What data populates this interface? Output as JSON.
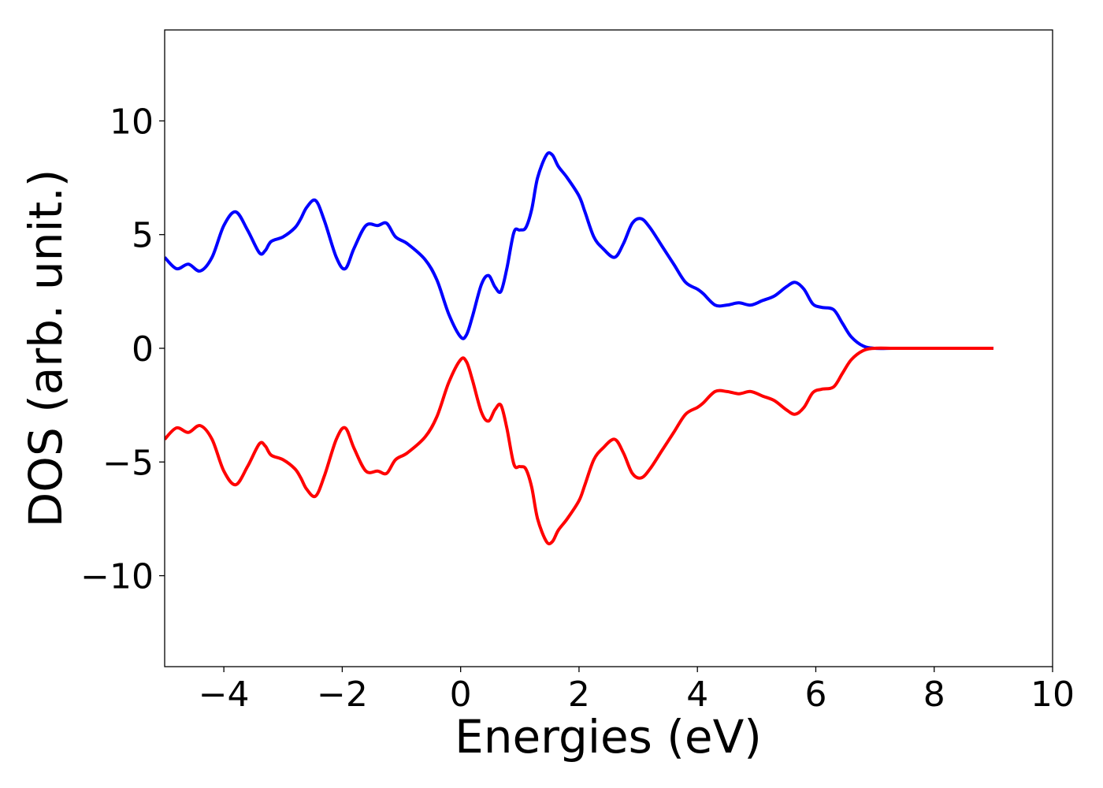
{
  "chart_data": {
    "type": "line",
    "title": "",
    "xlabel": "Energies (eV)",
    "ylabel": "DOS (arb. unit.)",
    "xlim": [
      -5,
      10
    ],
    "ylim": [
      -14,
      14
    ],
    "xticks": [
      -4,
      -2,
      0,
      2,
      4,
      6,
      8,
      10
    ],
    "yticks": [
      -10,
      -5,
      0,
      5,
      10
    ],
    "grid": false,
    "legend": "none",
    "series": [
      {
        "color": "#0000ff",
        "x": [
          -5.0,
          -4.8,
          -4.6,
          -4.4,
          -4.2,
          -4.0,
          -3.8,
          -3.6,
          -3.4,
          -3.3,
          -3.2,
          -3.0,
          -2.8,
          -2.7,
          -2.6,
          -2.45,
          -2.3,
          -2.1,
          -1.95,
          -1.8,
          -1.6,
          -1.4,
          -1.25,
          -1.1,
          -0.9,
          -0.6,
          -0.4,
          -0.2,
          0.0,
          0.1,
          0.2,
          0.35,
          0.47,
          0.58,
          0.68,
          0.78,
          0.9,
          1.0,
          1.1,
          1.2,
          1.3,
          1.45,
          1.55,
          1.65,
          1.8,
          2.0,
          2.1,
          2.25,
          2.4,
          2.6,
          2.75,
          2.9,
          3.05,
          3.2,
          3.4,
          3.6,
          3.8,
          4.0,
          4.1,
          4.3,
          4.5,
          4.7,
          4.9,
          5.1,
          5.3,
          5.5,
          5.65,
          5.8,
          5.95,
          6.1,
          6.3,
          6.45,
          6.6,
          6.8,
          7.0,
          7.3,
          7.6,
          8.0,
          8.5,
          9.0
        ],
        "values": [
          4.0,
          3.5,
          3.7,
          3.4,
          4.0,
          5.4,
          6.0,
          5.2,
          4.2,
          4.3,
          4.7,
          4.9,
          5.3,
          5.7,
          6.2,
          6.5,
          5.6,
          4.0,
          3.5,
          4.4,
          5.4,
          5.4,
          5.5,
          4.9,
          4.6,
          3.9,
          3.0,
          1.5,
          0.5,
          0.6,
          1.4,
          2.8,
          3.2,
          2.7,
          2.5,
          3.5,
          5.1,
          5.2,
          5.3,
          6.1,
          7.5,
          8.5,
          8.5,
          8.0,
          7.5,
          6.7,
          6.0,
          4.9,
          4.4,
          4.0,
          4.6,
          5.5,
          5.7,
          5.3,
          4.5,
          3.7,
          2.9,
          2.6,
          2.4,
          1.9,
          1.9,
          2.0,
          1.9,
          2.1,
          2.3,
          2.7,
          2.9,
          2.6,
          1.95,
          1.8,
          1.7,
          1.1,
          0.5,
          0.1,
          0.0,
          0.0,
          0.0,
          0.0,
          0.0,
          0.0
        ]
      },
      {
        "color": "#ff0000",
        "x": [
          -5.0,
          -4.8,
          -4.6,
          -4.4,
          -4.2,
          -4.0,
          -3.8,
          -3.6,
          -3.4,
          -3.3,
          -3.2,
          -3.0,
          -2.8,
          -2.7,
          -2.6,
          -2.45,
          -2.3,
          -2.1,
          -1.95,
          -1.8,
          -1.6,
          -1.4,
          -1.25,
          -1.1,
          -0.9,
          -0.6,
          -0.4,
          -0.2,
          0.0,
          0.1,
          0.2,
          0.35,
          0.47,
          0.58,
          0.68,
          0.78,
          0.9,
          1.0,
          1.1,
          1.2,
          1.3,
          1.45,
          1.55,
          1.65,
          1.8,
          2.0,
          2.1,
          2.25,
          2.4,
          2.6,
          2.75,
          2.9,
          3.05,
          3.2,
          3.4,
          3.6,
          3.8,
          4.0,
          4.1,
          4.3,
          4.5,
          4.7,
          4.9,
          5.1,
          5.3,
          5.5,
          5.65,
          5.8,
          5.95,
          6.1,
          6.3,
          6.45,
          6.6,
          6.8,
          7.0,
          7.3,
          7.6,
          8.0,
          8.5,
          9.0
        ],
        "values": [
          -4.0,
          -3.5,
          -3.7,
          -3.4,
          -4.0,
          -5.4,
          -6.0,
          -5.2,
          -4.2,
          -4.3,
          -4.7,
          -4.9,
          -5.3,
          -5.7,
          -6.2,
          -6.5,
          -5.6,
          -4.0,
          -3.5,
          -4.4,
          -5.4,
          -5.4,
          -5.5,
          -4.9,
          -4.6,
          -3.9,
          -3.0,
          -1.5,
          -0.5,
          -0.6,
          -1.4,
          -2.8,
          -3.2,
          -2.7,
          -2.5,
          -3.5,
          -5.1,
          -5.2,
          -5.3,
          -6.1,
          -7.5,
          -8.5,
          -8.5,
          -8.0,
          -7.5,
          -6.7,
          -6.0,
          -4.9,
          -4.4,
          -4.0,
          -4.6,
          -5.5,
          -5.7,
          -5.3,
          -4.5,
          -3.7,
          -2.9,
          -2.6,
          -2.4,
          -1.9,
          -1.9,
          -2.0,
          -1.9,
          -2.1,
          -2.3,
          -2.7,
          -2.9,
          -2.6,
          -1.95,
          -1.8,
          -1.7,
          -1.1,
          -0.5,
          -0.1,
          0.0,
          0.0,
          0.0,
          0.0,
          0.0,
          0.0
        ]
      }
    ]
  }
}
